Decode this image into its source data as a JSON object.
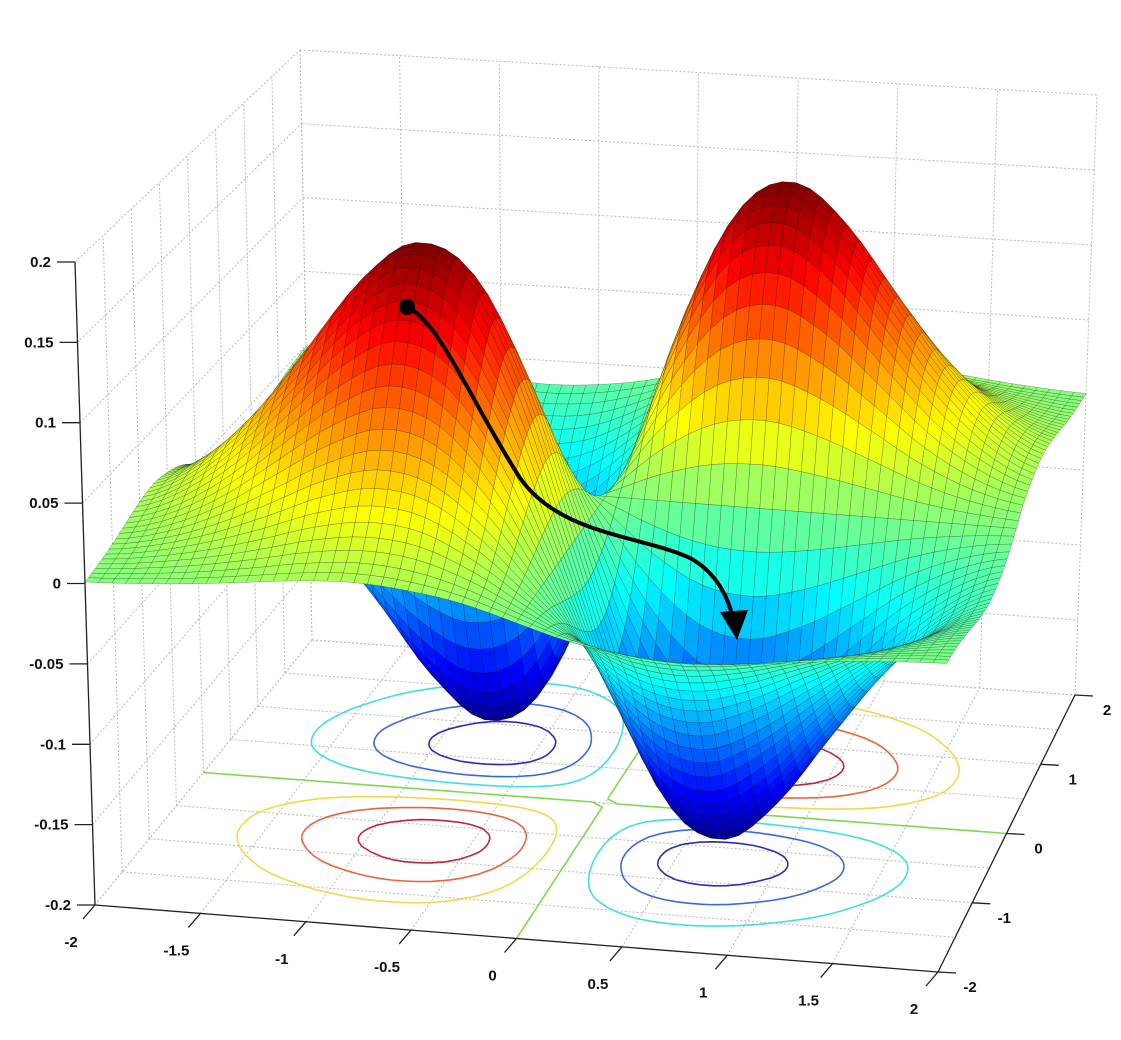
{
  "chart_data": {
    "type": "surface",
    "title": "",
    "xlabel": "",
    "ylabel": "",
    "zlabel": "",
    "xlim": [
      -2,
      2
    ],
    "ylim": [
      -2,
      2
    ],
    "zlim": [
      -0.2,
      0.2
    ],
    "grid": true,
    "colormap": "jet",
    "clim": [
      -0.184,
      0.184
    ],
    "x_ticks": [
      "-2",
      "-1.5",
      "-1",
      "-0.5",
      "0",
      "0.5",
      "1",
      "1.5",
      "2"
    ],
    "y_ticks": [
      "-2",
      "-1",
      "0",
      "1",
      "2"
    ],
    "z_ticks": [
      "-0.2",
      "-0.15",
      "-0.1",
      "-0.05",
      "0",
      "0.05",
      "0.1",
      "0.15",
      "0.2"
    ],
    "surface": {
      "x": [
        -2,
        -1.75,
        -1.5,
        -1.25,
        -1,
        -0.75,
        -0.5,
        -0.25,
        0,
        0.25,
        0.5,
        0.75,
        1,
        1.25,
        1.5,
        1.75,
        2
      ],
      "y": [
        -2,
        -1.75,
        -1.5,
        -1.25,
        -1,
        -0.75,
        -0.5,
        -0.25,
        0,
        0.25,
        0.5,
        0.75,
        1,
        1.25,
        1.5,
        1.75,
        2
      ],
      "z": [
        [
          0.001,
          0.003,
          0.006,
          0.01,
          0.014,
          0.016,
          0.014,
          0.009,
          0,
          -0.009,
          -0.014,
          -0.016,
          -0.014,
          -0.01,
          -0.006,
          -0.003,
          -0.001
        ],
        [
          0.003,
          0.007,
          0.013,
          0.021,
          0.03,
          0.035,
          0.032,
          0.019,
          0,
          -0.019,
          -0.032,
          -0.035,
          -0.03,
          -0.021,
          -0.013,
          -0.007,
          -0.003
        ],
        [
          0.006,
          0.013,
          0.025,
          0.041,
          0.058,
          0.068,
          0.062,
          0.037,
          0,
          -0.037,
          -0.062,
          -0.068,
          -0.058,
          -0.041,
          -0.025,
          -0.013,
          -0.006
        ],
        [
          0.01,
          0.021,
          0.041,
          0.069,
          0.096,
          0.112,
          0.102,
          0.062,
          0,
          -0.062,
          -0.102,
          -0.112,
          -0.096,
          -0.069,
          -0.041,
          -0.021,
          -0.01
        ],
        [
          0.014,
          0.03,
          0.058,
          0.096,
          0.135,
          0.157,
          0.143,
          0.086,
          0,
          -0.086,
          -0.143,
          -0.157,
          -0.135,
          -0.096,
          -0.058,
          -0.03,
          -0.014
        ],
        [
          0.016,
          0.035,
          0.068,
          0.112,
          0.157,
          0.183,
          0.166,
          0.1,
          0,
          -0.1,
          -0.166,
          -0.183,
          -0.157,
          -0.112,
          -0.068,
          -0.035,
          -0.016
        ],
        [
          0.014,
          0.032,
          0.062,
          0.102,
          0.143,
          0.166,
          0.152,
          0.091,
          0,
          -0.091,
          -0.152,
          -0.166,
          -0.143,
          -0.102,
          -0.062,
          -0.032,
          -0.014
        ],
        [
          0.009,
          0.019,
          0.037,
          0.062,
          0.086,
          0.1,
          0.091,
          0.055,
          0,
          -0.055,
          -0.091,
          -0.1,
          -0.086,
          -0.062,
          -0.037,
          -0.019,
          -0.009
        ],
        [
          0,
          0,
          0,
          0,
          0,
          0,
          0,
          0,
          0,
          0,
          0,
          0,
          0,
          0,
          0,
          0,
          0
        ],
        [
          -0.009,
          -0.019,
          -0.037,
          -0.062,
          -0.086,
          -0.1,
          -0.091,
          -0.055,
          0,
          0.055,
          0.091,
          0.1,
          0.086,
          0.062,
          0.037,
          0.019,
          0.009
        ],
        [
          -0.014,
          -0.032,
          -0.062,
          -0.102,
          -0.143,
          -0.166,
          -0.152,
          -0.091,
          0,
          0.091,
          0.152,
          0.166,
          0.143,
          0.102,
          0.062,
          0.032,
          0.014
        ],
        [
          -0.016,
          -0.035,
          -0.068,
          -0.112,
          -0.157,
          -0.183,
          -0.166,
          -0.1,
          0,
          0.1,
          0.166,
          0.183,
          0.157,
          0.112,
          0.068,
          0.035,
          0.016
        ],
        [
          -0.014,
          -0.03,
          -0.058,
          -0.096,
          -0.135,
          -0.157,
          -0.143,
          -0.086,
          0,
          0.086,
          0.143,
          0.157,
          0.135,
          0.096,
          0.058,
          0.03,
          0.014
        ],
        [
          -0.01,
          -0.021,
          -0.041,
          -0.069,
          -0.096,
          -0.112,
          -0.102,
          -0.062,
          0,
          0.062,
          0.102,
          0.112,
          0.096,
          0.069,
          0.041,
          0.021,
          0.01
        ],
        [
          -0.006,
          -0.013,
          -0.025,
          -0.041,
          -0.058,
          -0.068,
          -0.062,
          -0.037,
          0,
          0.037,
          0.062,
          0.068,
          0.058,
          0.041,
          0.025,
          0.013,
          0.006
        ],
        [
          -0.003,
          -0.007,
          -0.013,
          -0.021,
          -0.03,
          -0.035,
          -0.032,
          -0.019,
          0,
          0.019,
          0.032,
          0.035,
          0.03,
          0.021,
          0.013,
          0.007,
          0.003
        ],
        [
          -0.001,
          -0.003,
          -0.006,
          -0.01,
          -0.014,
          -0.016,
          -0.014,
          -0.009,
          0,
          0.009,
          0.014,
          0.016,
          0.014,
          0.01,
          0.006,
          0.003,
          0.001
        ]
      ]
    },
    "floor_contours": {
      "levels": [
        -0.15,
        -0.1,
        -0.05,
        0,
        0.05,
        0.1,
        0.15
      ],
      "colors": [
        "#2a2ab8",
        "#3a6ad8",
        "#40dce8",
        "#80d850",
        "#f0d848",
        "#e8643a",
        "#b8283a"
      ]
    },
    "annotation": {
      "type": "descent-path-arrow",
      "color": "#000000"
    }
  }
}
